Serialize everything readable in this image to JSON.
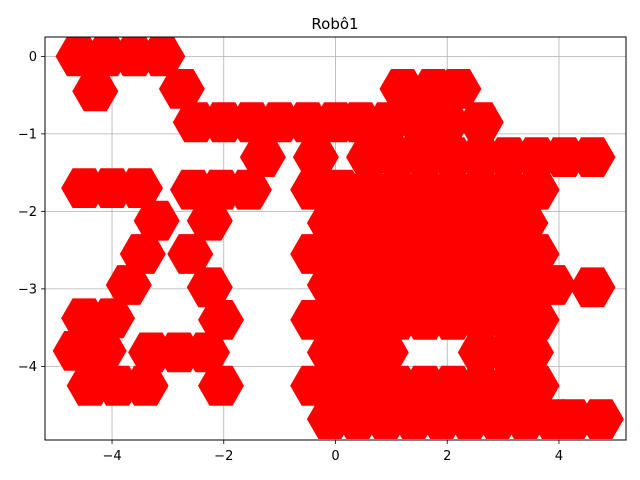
{
  "chart_data": {
    "type": "scatter",
    "title": "Robô1",
    "xlabel": "",
    "ylabel": "",
    "xlim": [
      -5.2,
      5.2
    ],
    "ylim": [
      -4.95,
      0.25
    ],
    "grid": true,
    "marker": "hexagon",
    "marker_color": "#ff0000",
    "x_ticks": [
      {
        "value": -4,
        "label": "−4"
      },
      {
        "value": -2,
        "label": "−2"
      },
      {
        "value": 0,
        "label": "0"
      },
      {
        "value": 2,
        "label": "2"
      },
      {
        "value": 4,
        "label": "4"
      }
    ],
    "y_ticks": [
      {
        "value": 0,
        "label": "0"
      },
      {
        "value": -1,
        "label": "−1"
      },
      {
        "value": -2,
        "label": "−2"
      },
      {
        "value": -3,
        "label": "−3"
      },
      {
        "value": -4,
        "label": "−4"
      }
    ],
    "points": [
      [
        -4.6,
        0.0
      ],
      [
        -4.1,
        0.0
      ],
      [
        -3.6,
        0.0
      ],
      [
        -3.1,
        0.0
      ],
      [
        -4.3,
        -0.45
      ],
      [
        -2.75,
        -0.42
      ],
      [
        -2.5,
        -0.85
      ],
      [
        -2.0,
        -0.85
      ],
      [
        -1.5,
        -0.85
      ],
      [
        -1.0,
        -0.85
      ],
      [
        -0.5,
        -0.85
      ],
      [
        0.0,
        -0.85
      ],
      [
        0.45,
        -0.85
      ],
      [
        1.2,
        -0.42
      ],
      [
        1.75,
        -0.42
      ],
      [
        2.2,
        -0.42
      ],
      [
        0.95,
        -0.85
      ],
      [
        1.5,
        -0.85
      ],
      [
        2.0,
        -0.85
      ],
      [
        2.6,
        -0.85
      ],
      [
        -1.3,
        -1.3
      ],
      [
        -0.35,
        -1.3
      ],
      [
        0.6,
        -1.3
      ],
      [
        1.1,
        -1.3
      ],
      [
        1.6,
        -1.3
      ],
      [
        2.1,
        -1.3
      ],
      [
        2.6,
        -1.3
      ],
      [
        3.1,
        -1.3
      ],
      [
        3.6,
        -1.3
      ],
      [
        4.1,
        -1.3
      ],
      [
        4.6,
        -1.3
      ],
      [
        -4.5,
        -1.7
      ],
      [
        -4.0,
        -1.7
      ],
      [
        -3.5,
        -1.7
      ],
      [
        -2.55,
        -1.72
      ],
      [
        -2.05,
        -1.72
      ],
      [
        -1.55,
        -1.72
      ],
      [
        -0.4,
        -1.72
      ],
      [
        0.1,
        -1.72
      ],
      [
        0.6,
        -1.72
      ],
      [
        1.1,
        -1.72
      ],
      [
        1.6,
        -1.72
      ],
      [
        2.1,
        -1.72
      ],
      [
        2.6,
        -1.72
      ],
      [
        3.1,
        -1.72
      ],
      [
        3.6,
        -1.72
      ],
      [
        -3.2,
        -2.12
      ],
      [
        -2.25,
        -2.12
      ],
      [
        -0.1,
        -2.15
      ],
      [
        0.4,
        -2.15
      ],
      [
        0.9,
        -2.15
      ],
      [
        1.4,
        -2.15
      ],
      [
        1.9,
        -2.15
      ],
      [
        2.4,
        -2.15
      ],
      [
        2.9,
        -2.15
      ],
      [
        3.4,
        -2.15
      ],
      [
        -3.45,
        -2.55
      ],
      [
        -2.6,
        -2.55
      ],
      [
        -0.4,
        -2.55
      ],
      [
        0.1,
        -2.55
      ],
      [
        0.6,
        -2.55
      ],
      [
        1.1,
        -2.55
      ],
      [
        1.6,
        -2.55
      ],
      [
        2.1,
        -2.55
      ],
      [
        2.6,
        -2.55
      ],
      [
        3.1,
        -2.55
      ],
      [
        3.6,
        -2.55
      ],
      [
        -3.7,
        -2.95
      ],
      [
        -2.25,
        -2.98
      ],
      [
        -0.1,
        -2.95
      ],
      [
        0.4,
        -2.95
      ],
      [
        0.9,
        -2.95
      ],
      [
        1.4,
        -2.95
      ],
      [
        1.9,
        -2.95
      ],
      [
        2.4,
        -2.95
      ],
      [
        2.9,
        -2.95
      ],
      [
        3.4,
        -2.95
      ],
      [
        3.9,
        -2.95
      ],
      [
        4.6,
        -2.98
      ],
      [
        -4.5,
        -3.38
      ],
      [
        -4.0,
        -3.38
      ],
      [
        -2.05,
        -3.4
      ],
      [
        -0.4,
        -3.4
      ],
      [
        0.1,
        -3.4
      ],
      [
        0.6,
        -3.4
      ],
      [
        1.1,
        -3.4
      ],
      [
        1.6,
        -3.4
      ],
      [
        2.1,
        -3.4
      ],
      [
        2.6,
        -3.4
      ],
      [
        3.1,
        -3.4
      ],
      [
        3.6,
        -3.4
      ],
      [
        -4.65,
        -3.8
      ],
      [
        -4.15,
        -3.8
      ],
      [
        -3.3,
        -3.82
      ],
      [
        -2.8,
        -3.82
      ],
      [
        -2.3,
        -3.82
      ],
      [
        -0.1,
        -3.82
      ],
      [
        0.4,
        -3.82
      ],
      [
        0.9,
        -3.82
      ],
      [
        2.6,
        -3.82
      ],
      [
        3.1,
        -3.82
      ],
      [
        3.5,
        -3.82
      ],
      [
        -4.4,
        -4.25
      ],
      [
        -3.9,
        -4.25
      ],
      [
        -3.4,
        -4.25
      ],
      [
        -2.05,
        -4.25
      ],
      [
        -0.4,
        -4.25
      ],
      [
        0.1,
        -4.25
      ],
      [
        0.6,
        -4.25
      ],
      [
        1.1,
        -4.25
      ],
      [
        1.6,
        -4.25
      ],
      [
        2.1,
        -4.25
      ],
      [
        2.6,
        -4.25
      ],
      [
        3.1,
        -4.25
      ],
      [
        3.6,
        -4.25
      ],
      [
        -0.1,
        -4.68
      ],
      [
        0.4,
        -4.68
      ],
      [
        0.9,
        -4.68
      ],
      [
        1.4,
        -4.68
      ],
      [
        1.9,
        -4.68
      ],
      [
        2.4,
        -4.68
      ],
      [
        2.9,
        -4.68
      ],
      [
        3.4,
        -4.68
      ],
      [
        3.9,
        -4.68
      ],
      [
        4.25,
        -4.68
      ],
      [
        4.75,
        -4.68
      ]
    ]
  }
}
